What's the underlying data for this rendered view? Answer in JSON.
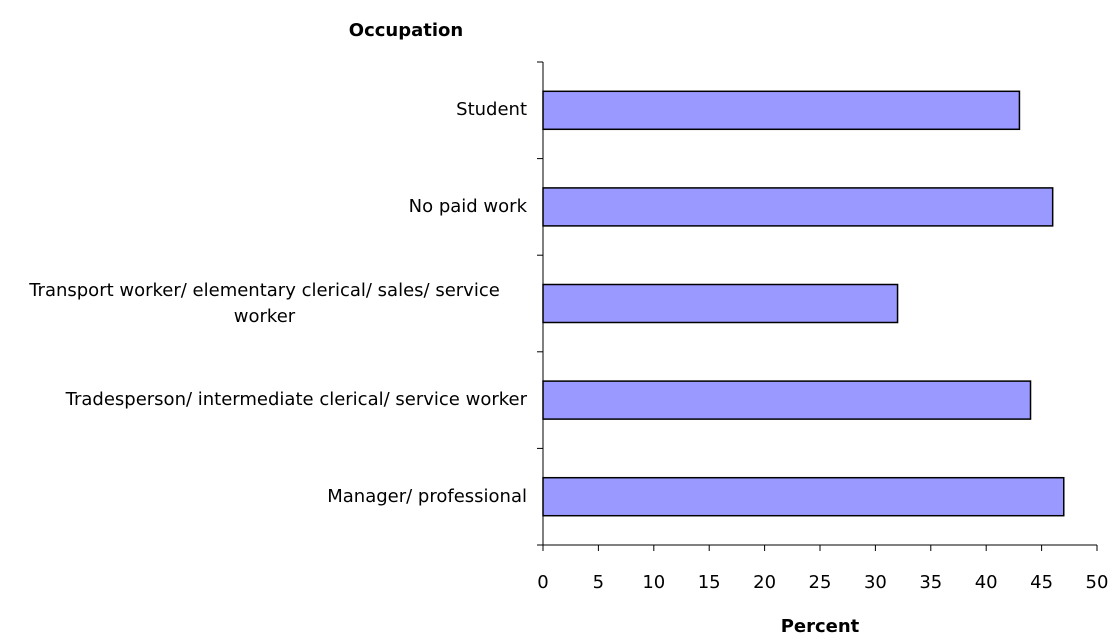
{
  "chart_data": {
    "type": "bar",
    "orientation": "horizontal",
    "title": "Occupation",
    "x_label": "Percent",
    "categories": [
      "Student",
      "No paid work",
      "Transport worker/ elementary clerical/ sales/ service worker",
      "Tradesperson/ intermediate clerical/ service worker",
      "Manager/ professional"
    ],
    "values": [
      43,
      46,
      32,
      44,
      47
    ],
    "color": "#9999ff",
    "xlim": [
      0,
      50
    ],
    "xticks": [
      0,
      5,
      10,
      15,
      20,
      25,
      30,
      35,
      40,
      45,
      50
    ],
    "grid": false
  }
}
